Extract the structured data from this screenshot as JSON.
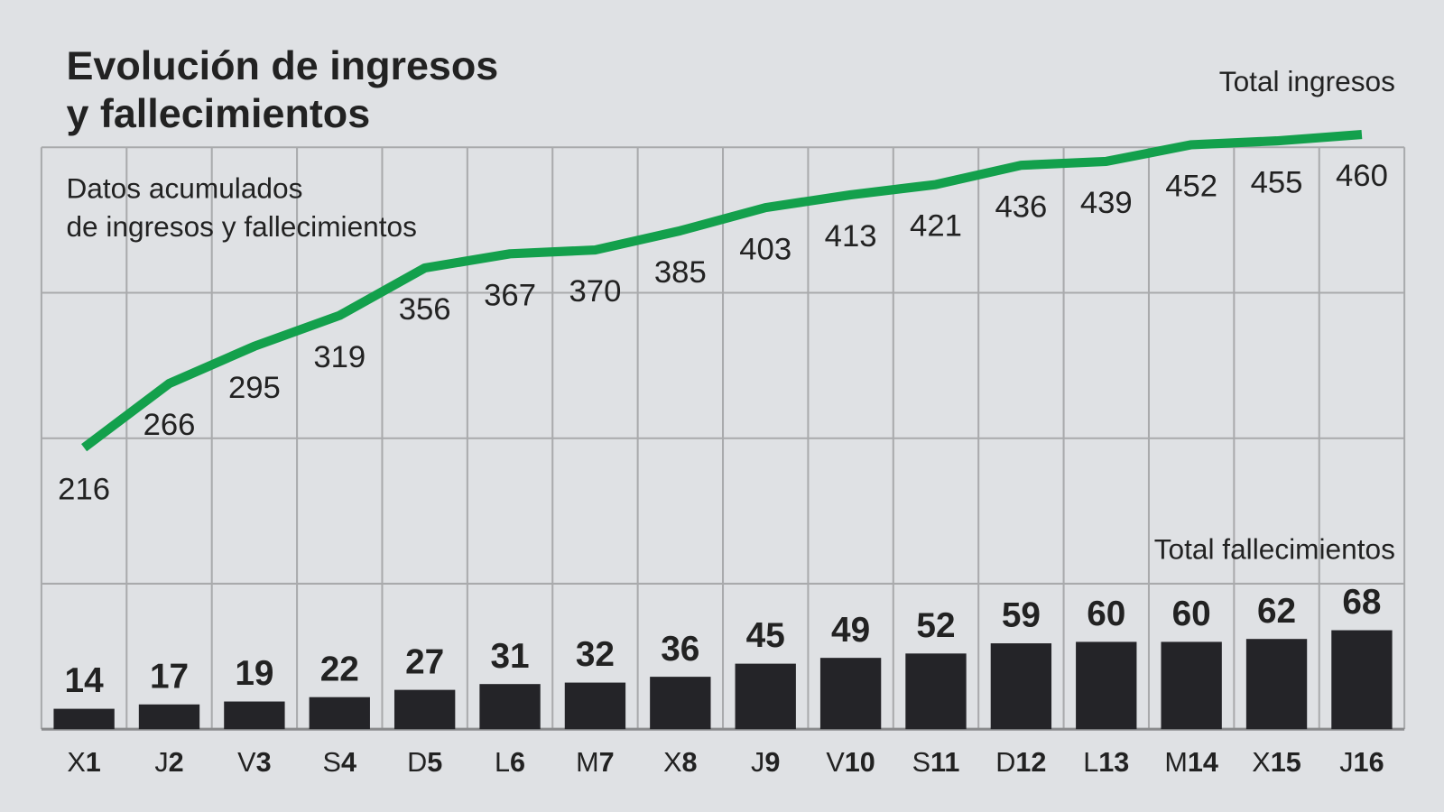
{
  "chart_data": {
    "type": "line-bar",
    "title": [
      "Evolución de ingresos",
      "y fallecimientos"
    ],
    "subtitle": [
      "Datos acumulados",
      "de ingresos y fallecimientos"
    ],
    "categories": [
      "X1",
      "J2",
      "V3",
      "S4",
      "D5",
      "L6",
      "M7",
      "X8",
      "J9",
      "V10",
      "S11",
      "D12",
      "L13",
      "M14",
      "X15",
      "J16"
    ],
    "series": [
      {
        "name": "Total ingresos",
        "type": "line",
        "color": "#13a04c",
        "values": [
          216,
          266,
          295,
          319,
          356,
          367,
          370,
          385,
          403,
          413,
          421,
          436,
          439,
          452,
          455,
          460
        ]
      },
      {
        "name": "Total fallecimientos",
        "type": "bar",
        "axis": "y2",
        "color": "#242428",
        "values": [
          14,
          17,
          19,
          22,
          27,
          31,
          32,
          36,
          45,
          49,
          52,
          59,
          60,
          60,
          62,
          68
        ]
      }
    ],
    "ylim": [
      110,
      450
    ],
    "y2lim": [
      0,
      100
    ],
    "grid": true
  }
}
